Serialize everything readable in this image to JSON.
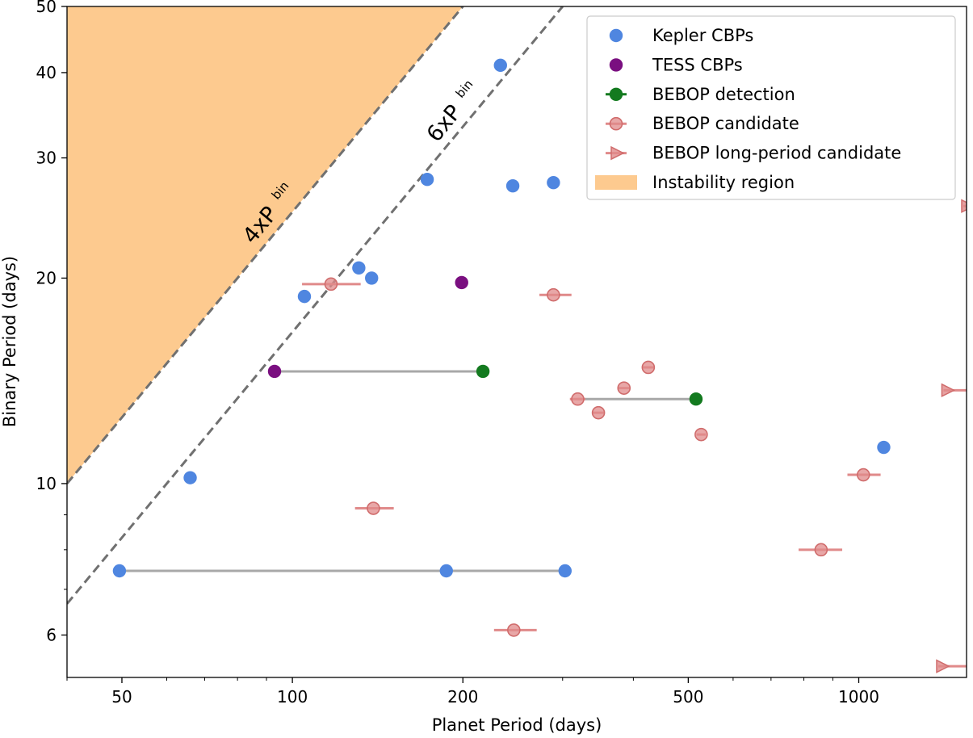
{
  "chart_data": {
    "type": "scatter",
    "title": "",
    "xlabel": "Planet Period (days)",
    "ylabel": "Binary Period (days)",
    "xscale": "log",
    "yscale": "log",
    "xlim": [
      40,
      1550
    ],
    "ylim": [
      5.2,
      50
    ],
    "x_ticks": [
      {
        "value": 50,
        "label": "50"
      },
      {
        "value": 100,
        "label": "100"
      },
      {
        "value": 200,
        "label": "200"
      },
      {
        "value": 500,
        "label": "500"
      },
      {
        "value": 1000,
        "label": "1000"
      }
    ],
    "y_ticks": [
      {
        "value": 6,
        "label": "6"
      },
      {
        "value": 10,
        "label": "10"
      },
      {
        "value": 20,
        "label": "20"
      },
      {
        "value": 30,
        "label": "30"
      },
      {
        "value": 40,
        "label": "40"
      },
      {
        "value": 50,
        "label": "50"
      }
    ],
    "instability_region": {
      "label": "Instability region",
      "color": "#fdca8f",
      "factor": 4
    },
    "boundaries": [
      {
        "factor": 4,
        "label": "4xP",
        "sub": "bin"
      },
      {
        "factor": 6,
        "label": "6xP",
        "sub": "bin"
      }
    ],
    "colors": {
      "kepler": "#4f86e0",
      "tess": "#7a0f80",
      "bebop_detection": "#137a1f",
      "bebop_candidate": "#e08a8a",
      "connector": "#a8a8a8",
      "boundary": "#707070"
    },
    "series": [
      {
        "name": "Kepler CBPs",
        "marker": "circle",
        "points": [
          {
            "x": 49.5,
            "y": 7.45
          },
          {
            "x": 66,
            "y": 10.2
          },
          {
            "x": 105,
            "y": 18.8
          },
          {
            "x": 131,
            "y": 20.7
          },
          {
            "x": 138,
            "y": 20
          },
          {
            "x": 173,
            "y": 27.9
          },
          {
            "x": 233,
            "y": 41
          },
          {
            "x": 245,
            "y": 27.3
          },
          {
            "x": 289,
            "y": 27.6
          },
          {
            "x": 187,
            "y": 7.45
          },
          {
            "x": 303,
            "y": 7.45
          },
          {
            "x": 1107,
            "y": 11.3
          }
        ]
      },
      {
        "name": "TESS CBPs",
        "marker": "circle",
        "points": [
          {
            "x": 93,
            "y": 14.6
          },
          {
            "x": 199,
            "y": 19.7
          }
        ]
      },
      {
        "name": "BEBOP detection",
        "marker": "circle",
        "points": [
          {
            "x": 217,
            "y": 14.6
          },
          {
            "x": 516,
            "y": 13.3
          }
        ]
      },
      {
        "name": "BEBOP candidate",
        "marker": "circle-errorbar",
        "points": [
          {
            "x": 117,
            "y": 19.6,
            "xerr": [
              104,
              132
            ]
          },
          {
            "x": 289,
            "y": 18.9,
            "xerr": [
              273,
              311
            ]
          },
          {
            "x": 139,
            "y": 9.2,
            "xerr": [
              129,
              151
            ]
          },
          {
            "x": 246,
            "y": 6.1,
            "xerr": [
              227,
              270
            ]
          },
          {
            "x": 319,
            "y": 13.3,
            "xerr": [
              309,
              329
            ]
          },
          {
            "x": 347,
            "y": 12.7,
            "xerr": [
              338,
              356
            ]
          },
          {
            "x": 385,
            "y": 13.8,
            "xerr": [
              375,
              395
            ]
          },
          {
            "x": 425,
            "y": 14.8,
            "xerr": [
              415,
              435
            ]
          },
          {
            "x": 527,
            "y": 11.8,
            "xerr": [
              517,
              537
            ]
          },
          {
            "x": 858,
            "y": 8.0,
            "xerr": [
              783,
              935
            ]
          },
          {
            "x": 1019,
            "y": 10.3,
            "xerr": [
              955,
              1093
            ]
          }
        ]
      },
      {
        "name": "BEBOP long-period candidate",
        "marker": "triangle-right",
        "points": [
          {
            "x": 1430,
            "y": 13.7
          },
          {
            "x": 1400,
            "y": 5.4
          },
          {
            "x": 1550,
            "y": 25.5
          }
        ]
      }
    ],
    "connectors": [
      {
        "x1": 93,
        "x2": 217,
        "y": 14.6
      },
      {
        "x1": 319,
        "x2": 516,
        "y": 13.3
      },
      {
        "x1": 49.5,
        "x2": 303,
        "y": 7.45
      }
    ],
    "legend": {
      "position": "top-right",
      "entries": [
        {
          "key": "kepler",
          "label": "Kepler CBPs",
          "type": "dot"
        },
        {
          "key": "tess",
          "label": "TESS CBPs",
          "type": "dot"
        },
        {
          "key": "bebop_detection",
          "label": "BEBOP detection",
          "type": "dot-line"
        },
        {
          "key": "bebop_candidate",
          "label": "BEBOP candidate",
          "type": "errorbar"
        },
        {
          "key": "bebop_candidate",
          "label": "BEBOP long-period candidate",
          "type": "triangle"
        },
        {
          "key": "instability",
          "label": "Instability region",
          "type": "patch"
        }
      ]
    }
  }
}
